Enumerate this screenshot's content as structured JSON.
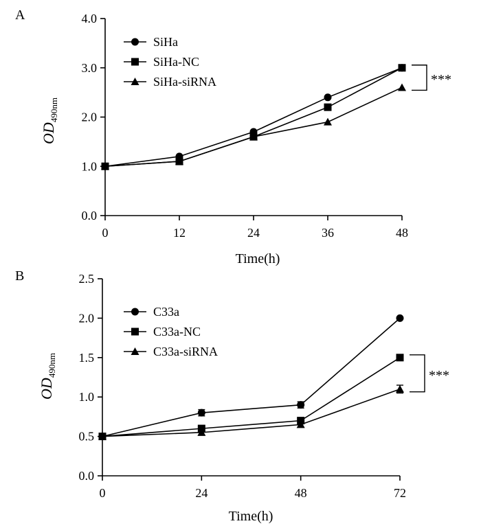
{
  "colors": {
    "ink": "#000000",
    "background": "#ffffff"
  },
  "chart_data": [
    {
      "panel_label": "A",
      "type": "line",
      "xlabel": "Time(h)",
      "ylabel": {
        "main": "OD",
        "subscript": "490nm"
      },
      "x": [
        0,
        12,
        24,
        36,
        48
      ],
      "x_ticks": [
        "0",
        "12",
        "24",
        "36",
        "48"
      ],
      "xlim": [
        0,
        48
      ],
      "y_ticks": [
        "0.0",
        "1.0",
        "2.0",
        "3.0",
        "4.0"
      ],
      "ylim": [
        0,
        4
      ],
      "grid": false,
      "legend_position": "top-left",
      "series": [
        {
          "name": "SiHa",
          "marker": "circle",
          "values": [
            1.0,
            1.2,
            1.7,
            2.4,
            3.0
          ]
        },
        {
          "name": "SiHa-NC",
          "marker": "square",
          "values": [
            1.0,
            1.1,
            1.6,
            2.2,
            3.0
          ]
        },
        {
          "name": "SiHa-siRNA",
          "marker": "triangle",
          "values": [
            1.0,
            1.1,
            1.6,
            1.9,
            2.6
          ]
        }
      ],
      "significance": {
        "text": "***",
        "at_x": 48,
        "from_y": 3.0,
        "to_y": 2.6
      }
    },
    {
      "panel_label": "B",
      "type": "line",
      "xlabel": "Time(h)",
      "ylabel": {
        "main": "OD",
        "subscript": "490nm"
      },
      "x": [
        0,
        24,
        48,
        72
      ],
      "x_ticks": [
        "0",
        "24",
        "48",
        "72"
      ],
      "xlim": [
        0,
        72
      ],
      "y_ticks": [
        "0.0",
        "0.5",
        "1.0",
        "1.5",
        "2.0",
        "2.5"
      ],
      "ylim": [
        0,
        2.5
      ],
      "grid": false,
      "legend_position": "top-left",
      "series": [
        {
          "name": "C33a",
          "marker": "circle",
          "values": [
            0.5,
            0.8,
            0.9,
            2.0
          ],
          "errors": [
            0,
            0.04,
            0.04,
            0
          ]
        },
        {
          "name": "C33a-NC",
          "marker": "square",
          "values": [
            0.5,
            0.6,
            0.7,
            1.5
          ],
          "errors": [
            0,
            0.04,
            0.04,
            0.03
          ]
        },
        {
          "name": "C33a-siRNA",
          "marker": "triangle",
          "values": [
            0.5,
            0.55,
            0.65,
            1.1
          ],
          "errors": [
            0,
            0.03,
            0.03,
            0.05
          ]
        }
      ],
      "significance": {
        "text": "***",
        "at_x": 72,
        "from_y": 1.5,
        "to_y": 1.1
      }
    }
  ]
}
